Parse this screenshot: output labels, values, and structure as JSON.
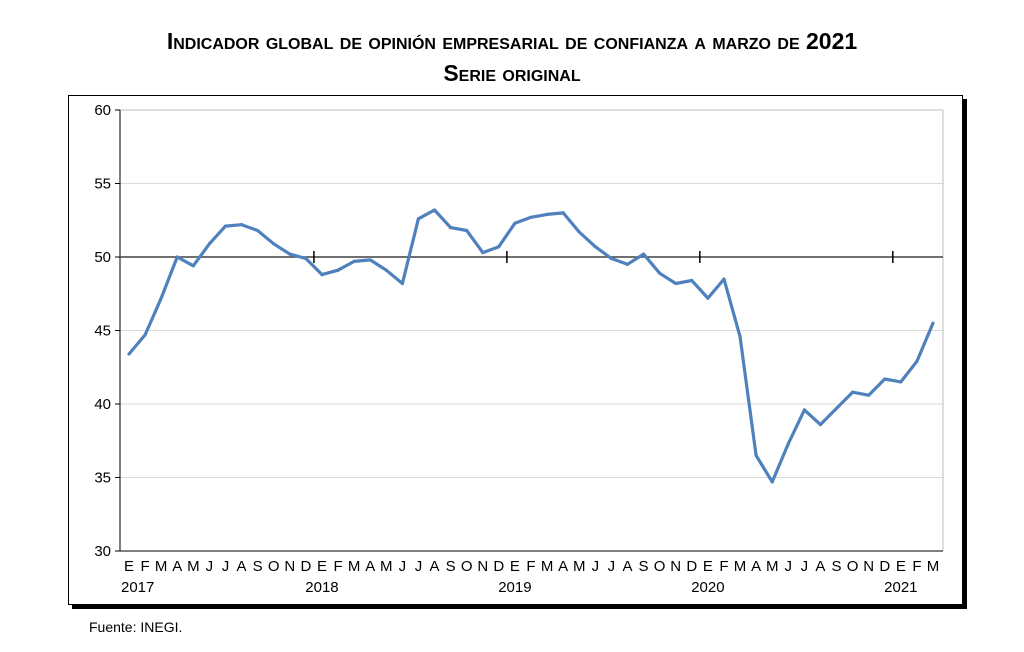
{
  "chart_data": {
    "type": "line",
    "title": "Indicador global de opinión empresarial de confianza a marzo de 2021",
    "subtitle": "Serie original",
    "xlabel": "",
    "ylabel": "",
    "ylim": [
      30,
      60
    ],
    "yticks": [
      "30",
      "35",
      "40",
      "45",
      "50",
      "55",
      "60"
    ],
    "reference_line": 50,
    "month_labels": [
      "E",
      "F",
      "M",
      "A",
      "M",
      "J",
      "J",
      "A",
      "S",
      "O",
      "N",
      "D",
      "E",
      "F",
      "M",
      "A",
      "M",
      "J",
      "J",
      "A",
      "S",
      "O",
      "N",
      "D",
      "E",
      "F",
      "M",
      "A",
      "M",
      "J",
      "J",
      "A",
      "S",
      "O",
      "N",
      "D",
      "E",
      "F",
      "M",
      "A",
      "M",
      "J",
      "J",
      "A",
      "S",
      "O",
      "N",
      "D",
      "E",
      "F",
      "M"
    ],
    "year_labels": [
      "2017",
      "2018",
      "2019",
      "2020",
      "2021"
    ],
    "grid": true,
    "series": [
      {
        "name": "Serie original",
        "color": "#4f81bd",
        "values": [
          43.4,
          44.7,
          47.2,
          50.0,
          49.4,
          50.9,
          52.1,
          52.2,
          51.8,
          50.9,
          50.2,
          49.9,
          48.8,
          49.1,
          49.7,
          49.8,
          49.1,
          48.2,
          52.6,
          53.2,
          52.0,
          51.8,
          50.3,
          50.7,
          52.3,
          52.7,
          52.9,
          53.0,
          51.7,
          50.7,
          49.9,
          49.5,
          50.2,
          48.9,
          48.2,
          48.4,
          47.2,
          48.5,
          44.6,
          36.5,
          34.7,
          37.3,
          39.6,
          38.6,
          39.7,
          40.8,
          40.6,
          41.7,
          41.5,
          42.9,
          45.5
        ]
      }
    ]
  },
  "source": "Fuente: INEGI."
}
